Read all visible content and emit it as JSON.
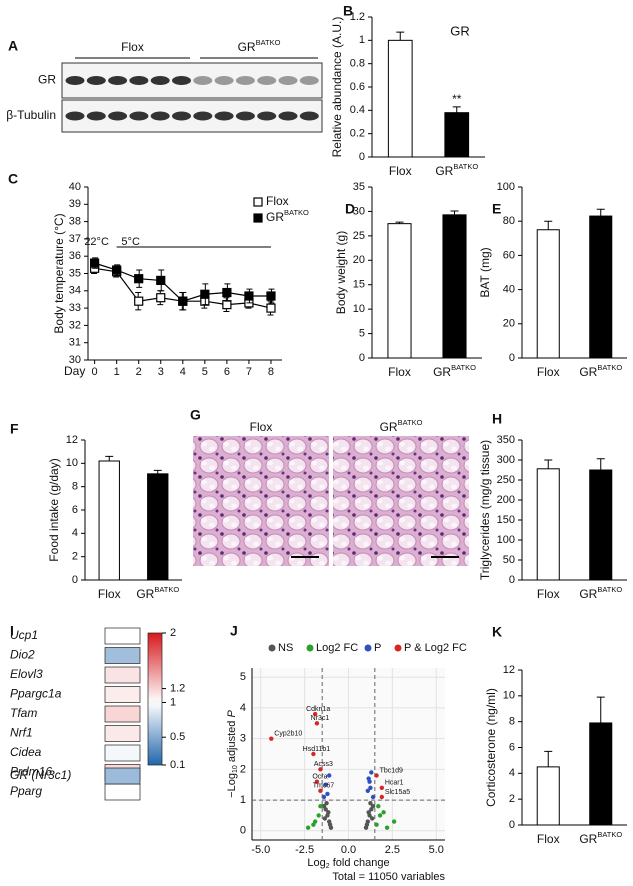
{
  "blot": {
    "panel_label": "A",
    "groups": [
      {
        "name": "Flox"
      },
      {
        "name": "GR",
        "sup": "BATKO"
      }
    ],
    "rows": [
      "GR",
      "β-Tubulin"
    ]
  },
  "histology": {
    "panel_label": "G",
    "panels": [
      {
        "name": "Flox"
      },
      {
        "name": "GR",
        "sup": "BATKO"
      }
    ]
  },
  "chart_data": [
    {
      "type": "bar",
      "panel_label": "B",
      "title": "GR",
      "ylabel": "Relative abundance (A.U.)",
      "categories": [
        "Flox",
        "GR"
      ],
      "category_sups": [
        null,
        "BATKO"
      ],
      "values": [
        1.0,
        0.38
      ],
      "errors": [
        0.07,
        0.05
      ],
      "colors": [
        "#ffffff",
        "#000000"
      ],
      "significance": [
        null,
        "**"
      ],
      "ylim": [
        0,
        1.2
      ],
      "yticks": [
        0,
        0.2,
        0.4,
        0.6,
        0.8,
        1,
        1.2
      ]
    },
    {
      "type": "line",
      "panel_label": "C",
      "ylabel": "Body temperature (°C)",
      "xlabel": "Day",
      "x": [
        0,
        1,
        2,
        3,
        4,
        5,
        6,
        7,
        8
      ],
      "xlim": [
        -0.3,
        8.5
      ],
      "xticks": [
        0,
        1,
        2,
        3,
        4,
        5,
        6,
        7,
        8
      ],
      "ylim": [
        30,
        40
      ],
      "yticks": [
        30,
        31,
        32,
        33,
        34,
        35,
        36,
        37,
        38,
        39,
        40
      ],
      "series": [
        {
          "name": "Flox",
          "fill": "#ffffff",
          "color": "#000000",
          "values": [
            35.3,
            35.1,
            33.4,
            33.6,
            33.4,
            33.4,
            33.2,
            33.3,
            33.0
          ],
          "errors": [
            0.3,
            0.3,
            0.5,
            0.4,
            0.5,
            0.4,
            0.4,
            0.3,
            0.4
          ]
        },
        {
          "name": "GR",
          "name_sup": "BATKO",
          "fill": "#000000",
          "color": "#000000",
          "values": [
            35.6,
            35.2,
            34.7,
            34.6,
            33.4,
            33.8,
            33.9,
            33.7,
            33.7
          ],
          "errors": [
            0.3,
            0.3,
            0.5,
            0.6,
            0.5,
            0.6,
            0.5,
            0.4,
            0.4
          ]
        }
      ],
      "annotations": [
        {
          "text": "22°C",
          "x": 0
        },
        {
          "text": "5°C",
          "x": 1,
          "x_end": 8
        }
      ]
    },
    {
      "type": "bar",
      "panel_label": "D",
      "ylabel": "Body weight (g)",
      "categories": [
        "Flox",
        "GR"
      ],
      "category_sups": [
        null,
        "BATKO"
      ],
      "values": [
        27.5,
        29.3
      ],
      "errors": [
        0.3,
        0.8
      ],
      "colors": [
        "#ffffff",
        "#000000"
      ],
      "ylim": [
        0,
        35
      ],
      "yticks": [
        0,
        5,
        10,
        15,
        20,
        25,
        30,
        35
      ]
    },
    {
      "type": "bar",
      "panel_label": "E",
      "ylabel": "BAT (mg)",
      "categories": [
        "Flox",
        "GR"
      ],
      "category_sups": [
        null,
        "BATKO"
      ],
      "values": [
        75,
        83
      ],
      "errors": [
        5,
        4
      ],
      "colors": [
        "#ffffff",
        "#000000"
      ],
      "ylim": [
        0,
        100
      ],
      "yticks": [
        0,
        20,
        40,
        60,
        80,
        100
      ]
    },
    {
      "type": "bar",
      "panel_label": "F",
      "ylabel": "Food intake (g/day)",
      "categories": [
        "Flox",
        "GR"
      ],
      "category_sups": [
        null,
        "BATKO"
      ],
      "values": [
        10.2,
        9.1
      ],
      "errors": [
        0.4,
        0.3
      ],
      "colors": [
        "#ffffff",
        "#000000"
      ],
      "ylim": [
        0,
        12
      ],
      "yticks": [
        0,
        2,
        4,
        6,
        8,
        10,
        12
      ]
    },
    {
      "type": "bar",
      "panel_label": "H",
      "ylabel": "Triglycerides (mg/g tissue)",
      "categories": [
        "Flox",
        "GR"
      ],
      "category_sups": [
        null,
        "BATKO"
      ],
      "values": [
        278,
        275
      ],
      "errors": [
        22,
        28
      ],
      "colors": [
        "#ffffff",
        "#000000"
      ],
      "ylim": [
        0,
        350
      ],
      "yticks": [
        0,
        50,
        100,
        150,
        200,
        250,
        300,
        350
      ]
    },
    {
      "type": "heatmap",
      "panel_label": "I",
      "genes": [
        "Ucp1",
        "Dio2",
        "Elovl3",
        "Ppargc1a",
        "Tfam",
        "Nrf1",
        "Cidea",
        "Prdm16",
        "Pparg",
        "GR (Nr3c1)"
      ],
      "values": [
        1.0,
        0.62,
        1.12,
        1.08,
        1.18,
        1.1,
        0.96,
        1.16,
        1.0,
        0.6
      ],
      "clim": [
        0.1,
        2
      ],
      "center": 1,
      "cticks": [
        2,
        1.2,
        1,
        0.5,
        0.1
      ],
      "low_color": "#2166ac",
      "high_color": "#d7191c"
    },
    {
      "type": "scatter",
      "panel_label": "J",
      "xlabel_parts": [
        "Log",
        "2",
        " fold change"
      ],
      "ylabel_parts": [
        "−Log",
        "10",
        " adjusted ",
        "P"
      ],
      "caption": "Total = 11050 variables",
      "xlim": [
        -5.5,
        5.5
      ],
      "ylim": [
        -0.3,
        5.3
      ],
      "xticks": [
        {
          "value": -5,
          "label": "-5.0"
        },
        -2.5,
        {
          "value": 0,
          "label": "0.0"
        },
        2.5,
        {
          "value": 5,
          "label": "5.0"
        }
      ],
      "yticks": [
        0,
        1,
        2,
        3,
        4,
        5
      ],
      "x_cutoffs": [
        -1.5,
        1.5
      ],
      "y_cutoff": 1,
      "grid": true,
      "series": [
        {
          "name": "NS",
          "color": "#555555",
          "x": [
            -1.0,
            -1.1,
            -1.2,
            -1.3,
            -1.25,
            -1.05,
            -1.15,
            -1.35,
            -1.4,
            1.0,
            1.1,
            1.2,
            1.3,
            1.25,
            1.05,
            1.15,
            1.35,
            1.4
          ],
          "values": [
            0.1,
            0.3,
            0.5,
            0.7,
            0.9,
            0.2,
            0.6,
            0.4,
            0.8,
            0.1,
            0.3,
            0.5,
            0.7,
            0.9,
            0.2,
            0.6,
            0.4,
            0.8
          ]
        },
        {
          "name": "Log2 FC",
          "color": "#2ca02c",
          "x": [
            -2.0,
            -1.7,
            -2.3,
            -1.6,
            -1.9,
            1.6,
            1.8,
            2.2,
            2.6,
            1.7,
            2.0
          ],
          "values": [
            0.2,
            0.5,
            0.1,
            0.8,
            0.3,
            0.2,
            0.5,
            0.1,
            0.3,
            0.8,
            0.6
          ]
        },
        {
          "name": "P",
          "color": "#3050c0",
          "x": [
            -1.2,
            -1.3,
            -1.1,
            -1.4,
            1.1,
            1.2,
            1.3,
            1.4,
            1.25,
            1.15
          ],
          "values": [
            1.2,
            1.5,
            1.8,
            1.1,
            1.3,
            1.6,
            1.9,
            1.1,
            1.4,
            1.7
          ]
        },
        {
          "name": "P & Log2 FC",
          "color": "#d62728",
          "x": [
            -4.4,
            -1.9,
            -1.8,
            -2.0,
            -1.6,
            -1.8,
            -1.6,
            1.6,
            1.9,
            1.9
          ],
          "values": [
            3.0,
            3.8,
            3.5,
            2.5,
            2.0,
            1.6,
            1.3,
            1.8,
            1.4,
            1.1
          ],
          "labels": [
            "Cyp2b10",
            "Cdkn1a",
            "Nr3c1",
            "Hsd11b1",
            "Acss3",
            "Ocra",
            "Tmc67",
            "Tbc1d9",
            "Hcar1",
            "Slc15a5"
          ]
        }
      ]
    },
    {
      "type": "bar",
      "panel_label": "K",
      "ylabel": "Corticosterone (ng/ml)",
      "categories": [
        "Flox",
        "GR"
      ],
      "category_sups": [
        null,
        "BATKO"
      ],
      "values": [
        4.5,
        7.9
      ],
      "errors": [
        1.2,
        2.0
      ],
      "colors": [
        "#ffffff",
        "#000000"
      ],
      "ylim": [
        0,
        12
      ],
      "yticks": [
        0,
        2,
        4,
        6,
        8,
        10,
        12
      ]
    }
  ]
}
